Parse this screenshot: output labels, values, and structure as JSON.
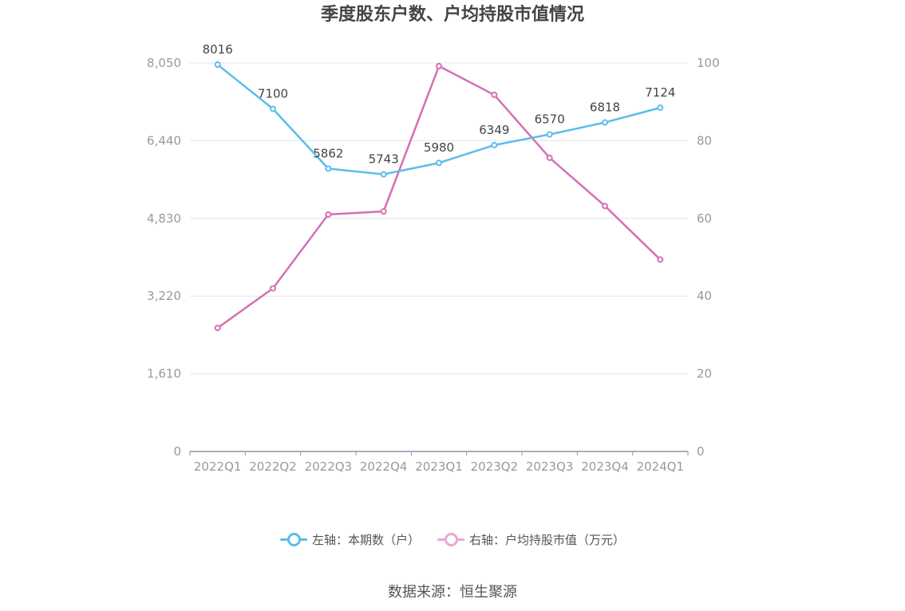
{
  "chart_data": {
    "type": "line",
    "title": "季度股东户数、户均持股市值情况",
    "categories": [
      "2022Q1",
      "2022Q2",
      "2022Q3",
      "2022Q4",
      "2023Q1",
      "2023Q2",
      "2023Q3",
      "2023Q4",
      "2024Q1"
    ],
    "left_axis": {
      "min": 0,
      "max": 8050,
      "ticks": [
        "0",
        "1,610",
        "3,220",
        "4,830",
        "6,440",
        "8,050"
      ]
    },
    "right_axis": {
      "min": 0,
      "max": 100,
      "ticks": [
        "0",
        "20",
        "40",
        "60",
        "80",
        "100"
      ]
    },
    "series": [
      {
        "name": "左轴：本期数（户）",
        "axis": "left",
        "color": "#5bbdea",
        "values": [
          8016,
          7100,
          5862,
          5743,
          5980,
          6349,
          6570,
          6818,
          7124
        ],
        "labels": [
          "8016",
          "7100",
          "5862",
          "5743",
          "5980",
          "6349",
          "6570",
          "6818",
          "7124"
        ]
      },
      {
        "name": "右轴：户均持股市值（万元）",
        "axis": "right",
        "color": "#d46fb5",
        "legend_color": "#e8a8d4",
        "values": [
          31.8,
          42.0,
          61.0,
          61.8,
          99.2,
          91.8,
          75.6,
          63.2,
          49.4
        ]
      }
    ],
    "grid": true,
    "legend_position": "bottom"
  },
  "source": "数据来源：恒生聚源"
}
